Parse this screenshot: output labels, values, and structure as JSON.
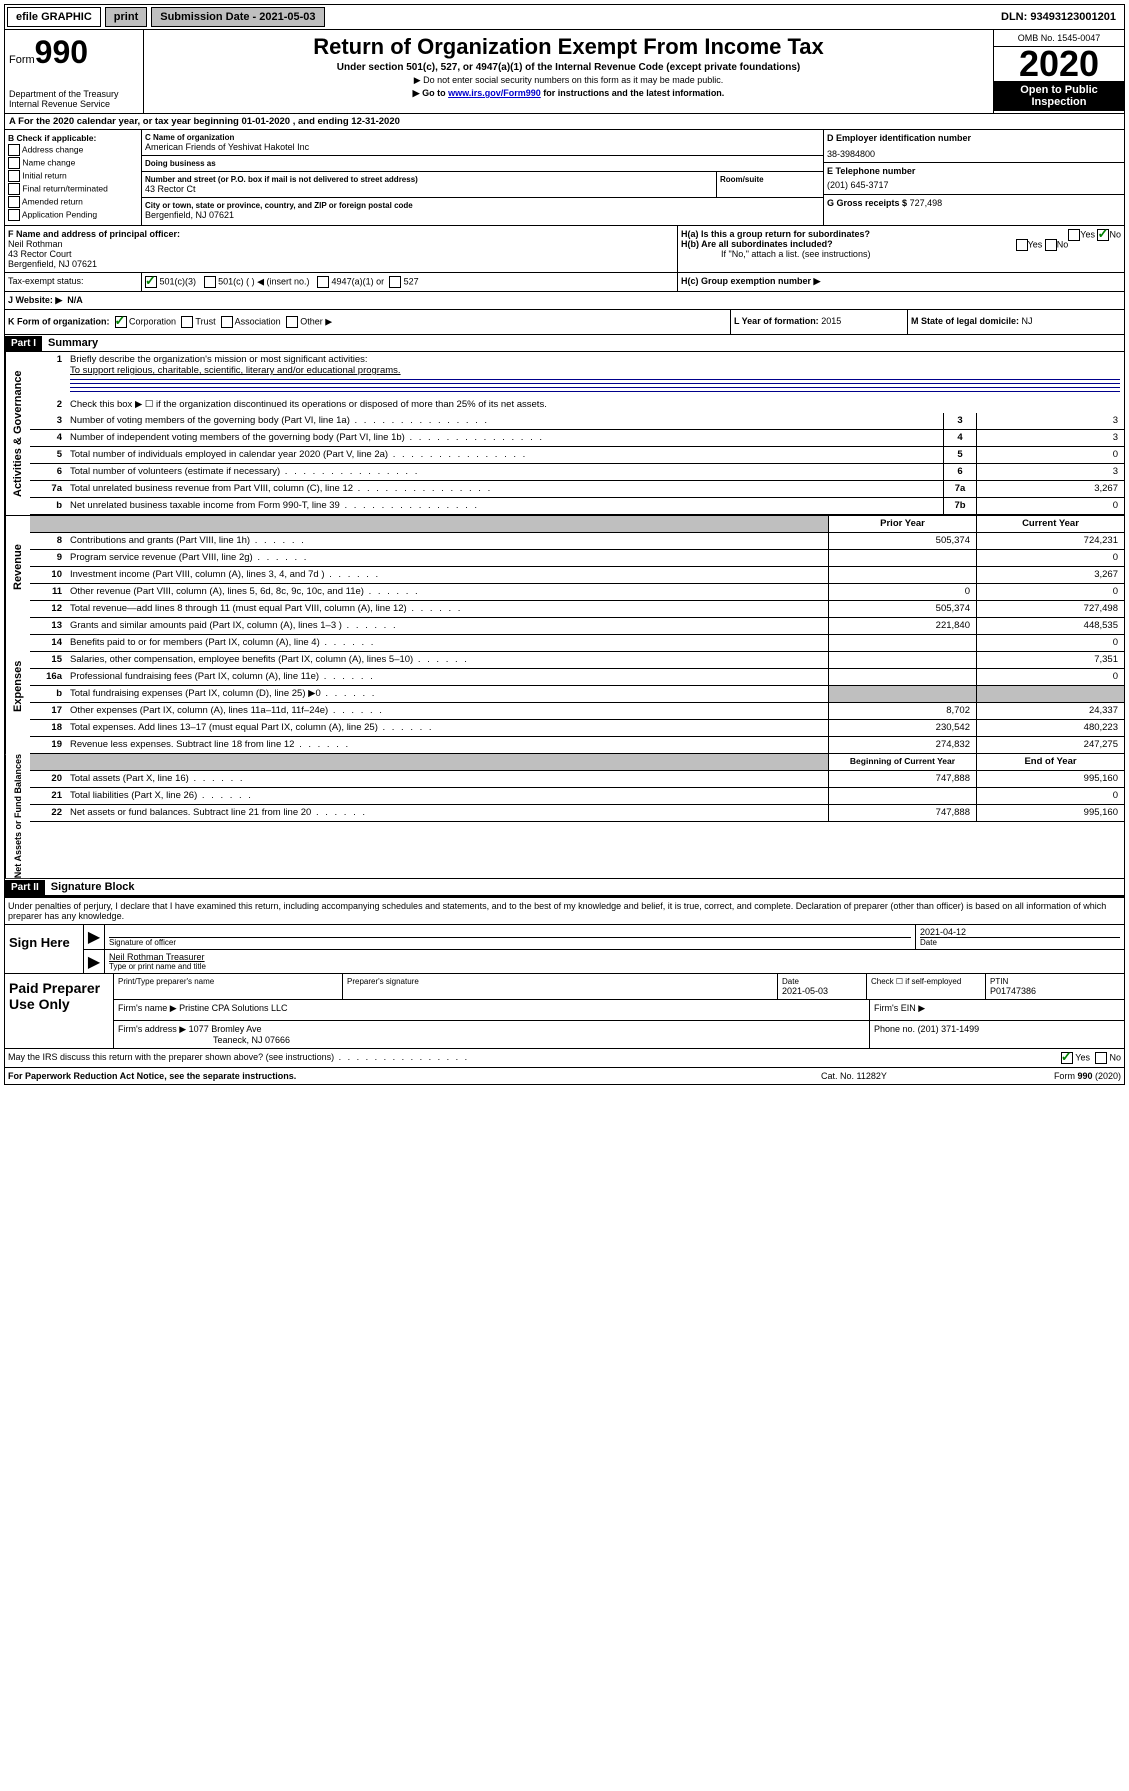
{
  "topbar": {
    "efile": "efile GRAPHIC",
    "print": "print",
    "submission": "Submission Date - 2021-05-03",
    "dln": "DLN: 93493123001201"
  },
  "header": {
    "form_label": "Form",
    "form_num": "990",
    "dept": "Department of the Treasury",
    "irs": "Internal Revenue Service",
    "title": "Return of Organization Exempt From Income Tax",
    "subtitle": "Under section 501(c), 527, or 4947(a)(1) of the Internal Revenue Code (except private foundations)",
    "note1": "▶ Do not enter social security numbers on this form as it may be made public.",
    "note2_pre": "▶ Go to ",
    "note2_link": "www.irs.gov/Form990",
    "note2_post": " for instructions and the latest information.",
    "omb": "OMB No. 1545-0047",
    "year": "2020",
    "open": "Open to Public Inspection"
  },
  "period": {
    "text": "A For the 2020 calendar year, or tax year beginning 01-01-2020     , and ending 12-31-2020"
  },
  "boxB": {
    "label": "B Check if applicable:",
    "items": [
      "Address change",
      "Name change",
      "Initial return",
      "Final return/terminated",
      "Amended return",
      "Application Pending"
    ]
  },
  "boxC": {
    "name_label": "C Name of organization",
    "name": "American Friends of Yeshivat Hakotel Inc",
    "dba_label": "Doing business as",
    "dba": "",
    "addr_label": "Number and street (or P.O. box if mail is not delivered to street address)",
    "room_label": "Room/suite",
    "addr": "43 Rector Ct",
    "city_label": "City or town, state or province, country, and ZIP or foreign postal code",
    "city": "Bergenfield, NJ  07621"
  },
  "boxD": {
    "label": "D Employer identification number",
    "value": "38-3984800"
  },
  "boxE": {
    "label": "E Telephone number",
    "value": "(201) 645-3717"
  },
  "boxG": {
    "label": "G Gross receipts $",
    "value": "727,498"
  },
  "boxF": {
    "label": "F Name and address of principal officer:",
    "name": "Neil Rothman",
    "addr1": "43 Rector Court",
    "addr2": "Bergenfield, NJ  07621"
  },
  "boxH": {
    "a": "H(a)  Is this a group return for subordinates?",
    "b": "H(b)  Are all subordinates included?",
    "b_note": "If \"No,\" attach a list. (see instructions)",
    "c": "H(c)  Group exemption number ▶",
    "yes": "Yes",
    "no": "No"
  },
  "boxI": {
    "label": "Tax-exempt status:",
    "opt1": "501(c)(3)",
    "opt2": "501(c) (   ) ◀ (insert no.)",
    "opt3": "4947(a)(1) or",
    "opt4": "527"
  },
  "boxJ": {
    "label": "J Website: ▶",
    "value": "N/A"
  },
  "boxK": {
    "label": "K Form of organization:",
    "corp": "Corporation",
    "trust": "Trust",
    "assoc": "Association",
    "other": "Other ▶"
  },
  "boxL": {
    "label": "L Year of formation:",
    "value": "2015"
  },
  "boxM": {
    "label": "M State of legal domicile:",
    "value": "NJ"
  },
  "part1": {
    "header_label": "Part I",
    "header_title": "Summary",
    "q1_label": "1",
    "q1": "Briefly describe the organization's mission or most significant activities:",
    "q1_answer": "To support religious, charitable, scientific, literary and/or educational programs.",
    "q2": "Check this box ▶ ☐  if the organization discontinued its operations or disposed of more than 25% of its net assets.",
    "side_gov": "Activities & Governance",
    "side_rev": "Revenue",
    "side_exp": "Expenses",
    "side_net": "Net Assets or Fund Balances",
    "header_prior": "Prior Year",
    "header_current": "Current Year",
    "header_begin": "Beginning of Current Year",
    "header_end": "End of Year",
    "rows_gov": [
      {
        "n": "3",
        "d": "Number of voting members of the governing body (Part VI, line 1a)",
        "box": "3",
        "v": "3"
      },
      {
        "n": "4",
        "d": "Number of independent voting members of the governing body (Part VI, line 1b)",
        "box": "4",
        "v": "3"
      },
      {
        "n": "5",
        "d": "Total number of individuals employed in calendar year 2020 (Part V, line 2a)",
        "box": "5",
        "v": "0"
      },
      {
        "n": "6",
        "d": "Total number of volunteers (estimate if necessary)",
        "box": "6",
        "v": "3"
      },
      {
        "n": "7a",
        "d": "Total unrelated business revenue from Part VIII, column (C), line 12",
        "box": "7a",
        "v": "3,267"
      },
      {
        "n": "b",
        "d": "Net unrelated business taxable income from Form 990-T, line 39",
        "box": "7b",
        "v": "0"
      }
    ],
    "rows_rev": [
      {
        "n": "8",
        "d": "Contributions and grants (Part VIII, line 1h)",
        "p": "505,374",
        "c": "724,231"
      },
      {
        "n": "9",
        "d": "Program service revenue (Part VIII, line 2g)",
        "p": "",
        "c": "0"
      },
      {
        "n": "10",
        "d": "Investment income (Part VIII, column (A), lines 3, 4, and 7d )",
        "p": "",
        "c": "3,267"
      },
      {
        "n": "11",
        "d": "Other revenue (Part VIII, column (A), lines 5, 6d, 8c, 9c, 10c, and 11e)",
        "p": "0",
        "c": "0"
      },
      {
        "n": "12",
        "d": "Total revenue—add lines 8 through 11 (must equal Part VIII, column (A), line 12)",
        "p": "505,374",
        "c": "727,498"
      }
    ],
    "rows_exp": [
      {
        "n": "13",
        "d": "Grants and similar amounts paid (Part IX, column (A), lines 1–3 )",
        "p": "221,840",
        "c": "448,535"
      },
      {
        "n": "14",
        "d": "Benefits paid to or for members (Part IX, column (A), line 4)",
        "p": "",
        "c": "0"
      },
      {
        "n": "15",
        "d": "Salaries, other compensation, employee benefits (Part IX, column (A), lines 5–10)",
        "p": "",
        "c": "7,351"
      },
      {
        "n": "16a",
        "d": "Professional fundraising fees (Part IX, column (A), line 11e)",
        "p": "",
        "c": "0"
      },
      {
        "n": "b",
        "d": "Total fundraising expenses (Part IX, column (D), line 25) ▶0",
        "p": "shade",
        "c": "shade"
      },
      {
        "n": "17",
        "d": "Other expenses (Part IX, column (A), lines 11a–11d, 11f–24e)",
        "p": "8,702",
        "c": "24,337"
      },
      {
        "n": "18",
        "d": "Total expenses. Add lines 13–17 (must equal Part IX, column (A), line 25)",
        "p": "230,542",
        "c": "480,223"
      },
      {
        "n": "19",
        "d": "Revenue less expenses. Subtract line 18 from line 12",
        "p": "274,832",
        "c": "247,275"
      }
    ],
    "rows_net": [
      {
        "n": "20",
        "d": "Total assets (Part X, line 16)",
        "p": "747,888",
        "c": "995,160"
      },
      {
        "n": "21",
        "d": "Total liabilities (Part X, line 26)",
        "p": "",
        "c": "0"
      },
      {
        "n": "22",
        "d": "Net assets or fund balances. Subtract line 21 from line 20",
        "p": "747,888",
        "c": "995,160"
      }
    ]
  },
  "part2": {
    "header_label": "Part II",
    "header_title": "Signature Block",
    "declare": "Under penalties of perjury, I declare that I have examined this return, including accompanying schedules and statements, and to the best of my knowledge and belief, it is true, correct, and complete. Declaration of preparer (other than officer) is based on all information of which preparer has any knowledge.",
    "sign_here": "Sign Here",
    "sig_officer": "Signature of officer",
    "sig_date": "2021-04-12",
    "date_label": "Date",
    "name_title": "Neil Rothman  Treasurer",
    "name_label": "Type or print name and title",
    "paid": "Paid Preparer Use Only",
    "prep_name_label": "Print/Type preparer's name",
    "prep_sig_label": "Preparer's signature",
    "prep_date_label": "Date",
    "prep_date": "2021-05-03",
    "check_self": "Check ☐ if self-employed",
    "ptin_label": "PTIN",
    "ptin": "P01747386",
    "firm_name_label": "Firm's name    ▶",
    "firm_name": "Pristine CPA Solutions LLC",
    "firm_ein_label": "Firm's EIN ▶",
    "firm_addr_label": "Firm's address ▶",
    "firm_addr1": "1077 Bromley Ave",
    "firm_addr2": "Teaneck, NJ  07666",
    "phone_label": "Phone no.",
    "phone": "(201) 371-1499",
    "discuss": "May the IRS discuss this return with the preparer shown above? (see instructions)",
    "yes": "Yes",
    "no": "No"
  },
  "footer": {
    "left": "For Paperwork Reduction Act Notice, see the separate instructions.",
    "mid": "Cat. No. 11282Y",
    "right": "Form 990 (2020)"
  }
}
